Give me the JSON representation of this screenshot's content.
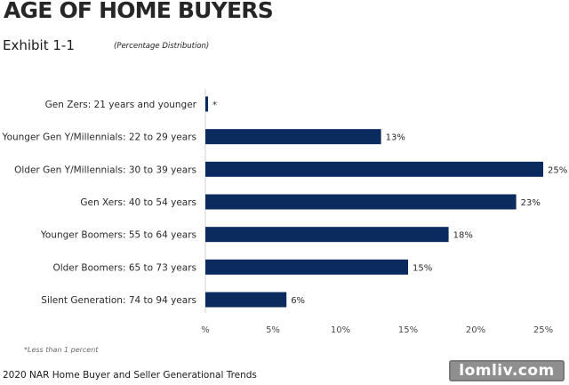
{
  "header": {
    "title": "AGE OF HOME BUYERS",
    "exhibit": "Exhibit 1-1",
    "subtitle": "(Percentage Distribution)"
  },
  "footer": {
    "footnote": "*Less than 1 percent",
    "source": "2020 NAR Home Buyer and Seller Generational Trends",
    "watermark": "lomliv.com"
  },
  "colors": {
    "bar": "#0b2b5e",
    "axis": "#d0d0d0",
    "text": "#222222"
  },
  "chart_data": {
    "type": "bar",
    "orientation": "horizontal",
    "categories": [
      "Gen Zers: 21 years and younger",
      "Younger Gen Y/Millennials: 22 to 29 years",
      "Older Gen Y/Millennials: 30 to 39 years",
      "Gen Xers: 40 to 54 years",
      "Younger Boomers: 55 to 64 years",
      "Older Boomers: 65 to 73 years",
      "Silent Generation: 74 to 94 years"
    ],
    "values": [
      0.2,
      13,
      25,
      23,
      18,
      15,
      6
    ],
    "data_labels": [
      "*",
      "13%",
      "25%",
      "23%",
      "18%",
      "15%",
      "6%"
    ],
    "xlim": [
      0,
      25
    ],
    "xticks": [
      0,
      5,
      10,
      15,
      20,
      25
    ],
    "xtick_labels": [
      "%",
      "5%",
      "10%",
      "15%",
      "20%",
      "25%"
    ],
    "grid": false,
    "legend": "none"
  }
}
